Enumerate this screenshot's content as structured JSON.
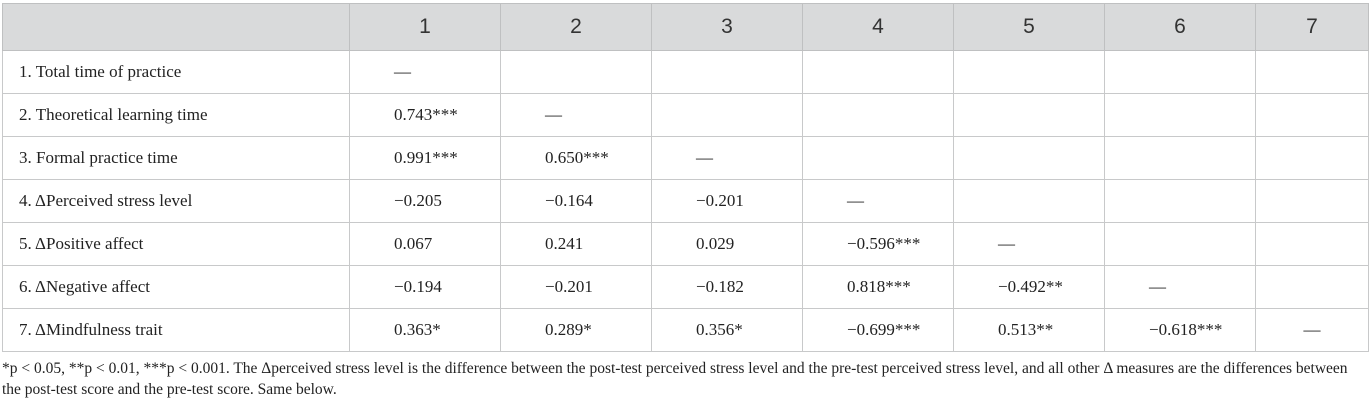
{
  "table": {
    "headers": [
      "",
      "1",
      "2",
      "3",
      "4",
      "5",
      "6",
      "7"
    ],
    "rows": [
      {
        "label": "1. Total time of practice",
        "cells": [
          "—",
          "",
          "",
          "",
          "",
          "",
          ""
        ]
      },
      {
        "label": "2. Theoretical learning time",
        "cells": [
          "0.743***",
          "—",
          "",
          "",
          "",
          "",
          ""
        ]
      },
      {
        "label": "3. Formal practice time",
        "cells": [
          "0.991***",
          "0.650***",
          "—",
          "",
          "",
          "",
          ""
        ]
      },
      {
        "label": "4. ΔPerceived stress level",
        "cells": [
          "−0.205",
          "−0.164",
          "−0.201",
          "—",
          "",
          "",
          ""
        ]
      },
      {
        "label": "5. ΔPositive affect",
        "cells": [
          "0.067",
          "0.241",
          "0.029",
          "−0.596***",
          "—",
          "",
          ""
        ]
      },
      {
        "label": "6. ΔNegative affect",
        "cells": [
          "−0.194",
          "−0.201",
          "−0.182",
          "0.818***",
          "−0.492**",
          "—",
          ""
        ]
      },
      {
        "label": "7. ΔMindfulness trait",
        "cells": [
          "0.363*",
          "0.289*",
          "0.356*",
          "−0.699***",
          "0.513**",
          "−0.618***",
          "—"
        ]
      }
    ]
  },
  "footnote": "*p < 0.05, **p < 0.01, ***p < 0.001. The Δperceived stress level is the difference between the post-test perceived stress level and the pre-test perceived stress level, and all other Δ measures are the differences between the post-test score and the pre-test score. Same below."
}
